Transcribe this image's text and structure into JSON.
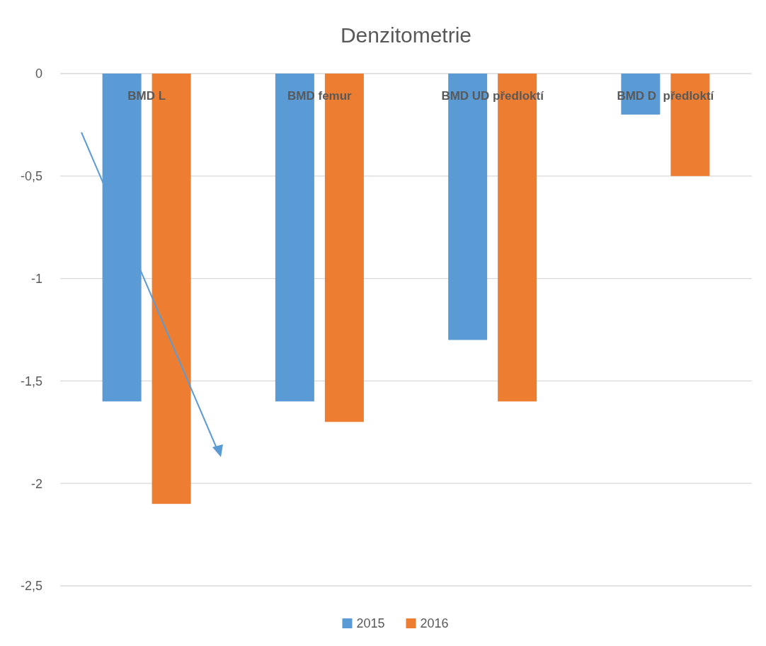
{
  "chart_data": {
    "type": "bar",
    "title": "Denzitometrie",
    "categories": [
      "BMD L",
      "BMD femur",
      "BMD UD předloktí",
      "BMD D  předloktí"
    ],
    "series": [
      {
        "name": "2015",
        "color": "#5b9bd5",
        "values": [
          -1.6,
          -1.6,
          -1.3,
          -0.2
        ]
      },
      {
        "name": "2016",
        "color": "#ed7d31",
        "values": [
          -2.1,
          -1.7,
          -1.6,
          -0.5
        ]
      }
    ],
    "ylim": [
      -2.5,
      0
    ],
    "yticks": [
      {
        "value": 0,
        "label": "0"
      },
      {
        "value": -0.5,
        "label": "-0,5"
      },
      {
        "value": -1,
        "label": "-1"
      },
      {
        "value": -1.5,
        "label": "-1,5"
      },
      {
        "value": -2,
        "label": "-2"
      },
      {
        "value": -2.5,
        "label": "-2,5"
      }
    ],
    "grid": "y",
    "legend": "bottom"
  }
}
